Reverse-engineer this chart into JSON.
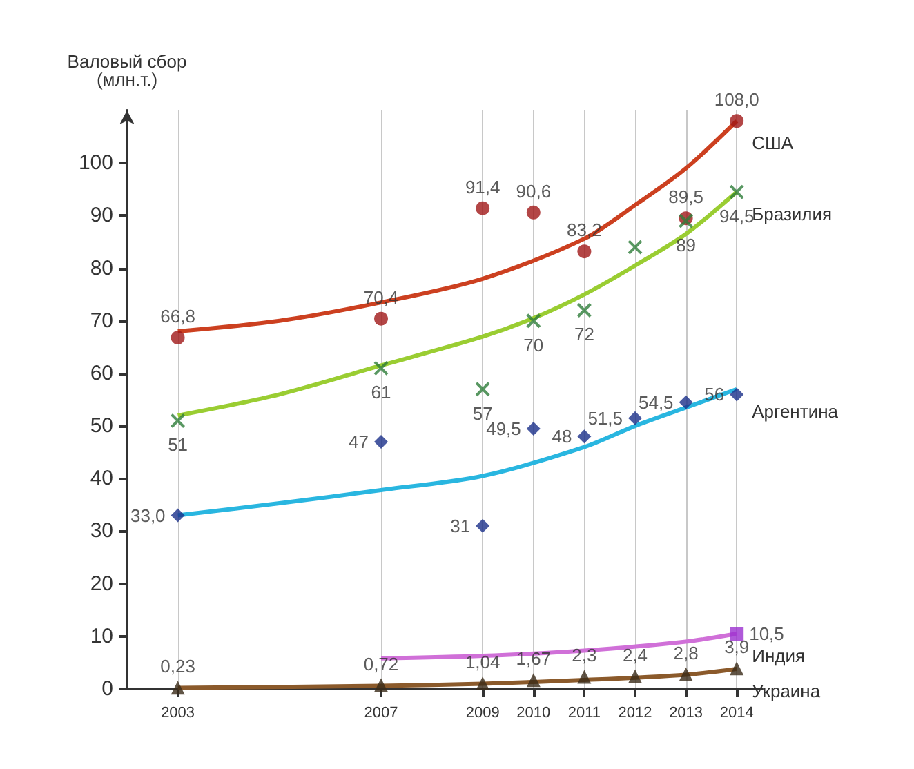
{
  "chart_data": {
    "type": "scatter",
    "ylabel": "Валовый сбор\n(млн.т.)",
    "xlim": [
      2002,
      2014.5
    ],
    "xticks": [
      2003,
      2007,
      2009,
      2010,
      2011,
      2012,
      2013,
      2014
    ],
    "ylim": [
      0,
      110
    ],
    "yticks": [
      0,
      10,
      20,
      30,
      40,
      50,
      60,
      70,
      80,
      90,
      100
    ],
    "grid": "x",
    "legend": false,
    "series": [
      {
        "marker": "circle",
        "color": "#a01818",
        "x": [
          2003,
          2007,
          2009,
          2010,
          2011,
          2013,
          2014
        ],
        "values": [
          66.8,
          70.4,
          91.4,
          90.6,
          83.2,
          89.5,
          108.0
        ],
        "value_labels": [
          "66,8",
          "70,4",
          "91,4",
          "90,6",
          "83,2",
          "89,5",
          "108,0"
        ]
      },
      {
        "type": "line",
        "name": "США",
        "marker": "none",
        "color": "#cc4020",
        "x": [
          2003,
          2005,
          2007,
          2009,
          2011,
          2012,
          2013,
          2014
        ],
        "values": [
          68,
          70,
          73.5,
          78,
          85.6,
          92,
          99,
          108
        ]
      },
      {
        "marker": "cross",
        "color": "#2e7d3a",
        "x": [
          2003,
          2007,
          2009,
          2010,
          2011,
          2012,
          2013,
          2014
        ],
        "values": [
          51,
          61,
          57,
          70,
          72,
          84,
          89,
          94.5
        ],
        "value_labels": [
          "51",
          "61",
          "57",
          "70",
          "72",
          null,
          "89",
          "94,5"
        ]
      },
      {
        "type": "line",
        "name": "Бразилия",
        "marker": "none",
        "color": "#9acd32",
        "x": [
          2003,
          2005,
          2007,
          2009,
          2010,
          2011,
          2012,
          2013,
          2014
        ],
        "values": [
          52,
          56,
          61.5,
          67,
          70.5,
          75,
          80.5,
          86.5,
          94.5
        ]
      },
      {
        "marker": "diamond",
        "color": "#1a2f8a",
        "x": [
          2003,
          2007,
          2009,
          2010,
          2011,
          2012,
          2013,
          2014
        ],
        "values": [
          33.0,
          47,
          31,
          49.5,
          48,
          51.5,
          54.5,
          56
        ],
        "value_labels": [
          "33,0",
          "47",
          "31",
          "49,5",
          "48",
          "51,5",
          "54,5",
          "56"
        ]
      },
      {
        "type": "line",
        "name": "Аргентина",
        "marker": "none",
        "color": "#29b6e0",
        "x": [
          2003,
          2005,
          2007,
          2009,
          2011,
          2012,
          2013,
          2014
        ],
        "values": [
          33,
          35.3,
          37.8,
          40.5,
          46,
          50,
          53.5,
          57
        ]
      },
      {
        "marker": "square",
        "color": "#9b30d0",
        "x": [
          2014
        ],
        "values": [
          10.5
        ],
        "value_labels": [
          "10,5"
        ]
      },
      {
        "type": "line",
        "name": "Индия",
        "marker": "none",
        "color": "#d070d8",
        "x": [
          2007,
          2009,
          2011,
          2013,
          2014
        ],
        "values": [
          5.8,
          6.3,
          7.3,
          9,
          10.5
        ]
      },
      {
        "marker": "triangle",
        "color": "#3a2a18",
        "x": [
          2003,
          2007,
          2009,
          2010,
          2011,
          2012,
          2013,
          2014
        ],
        "values": [
          0.23,
          0.72,
          1.04,
          1.67,
          2.3,
          2.4,
          2.8,
          3.9
        ],
        "value_labels": [
          "0,23",
          "0,72",
          "1,04",
          "1,67",
          "2,3",
          "2,4",
          "2,8",
          "3,9"
        ]
      },
      {
        "type": "line",
        "name": "Украина",
        "marker": "none",
        "color": "#8b5a2b",
        "x": [
          2003,
          2007,
          2009,
          2011,
          2013,
          2014
        ],
        "values": [
          0.2,
          0.6,
          1.0,
          1.7,
          2.7,
          3.8
        ]
      }
    ]
  }
}
